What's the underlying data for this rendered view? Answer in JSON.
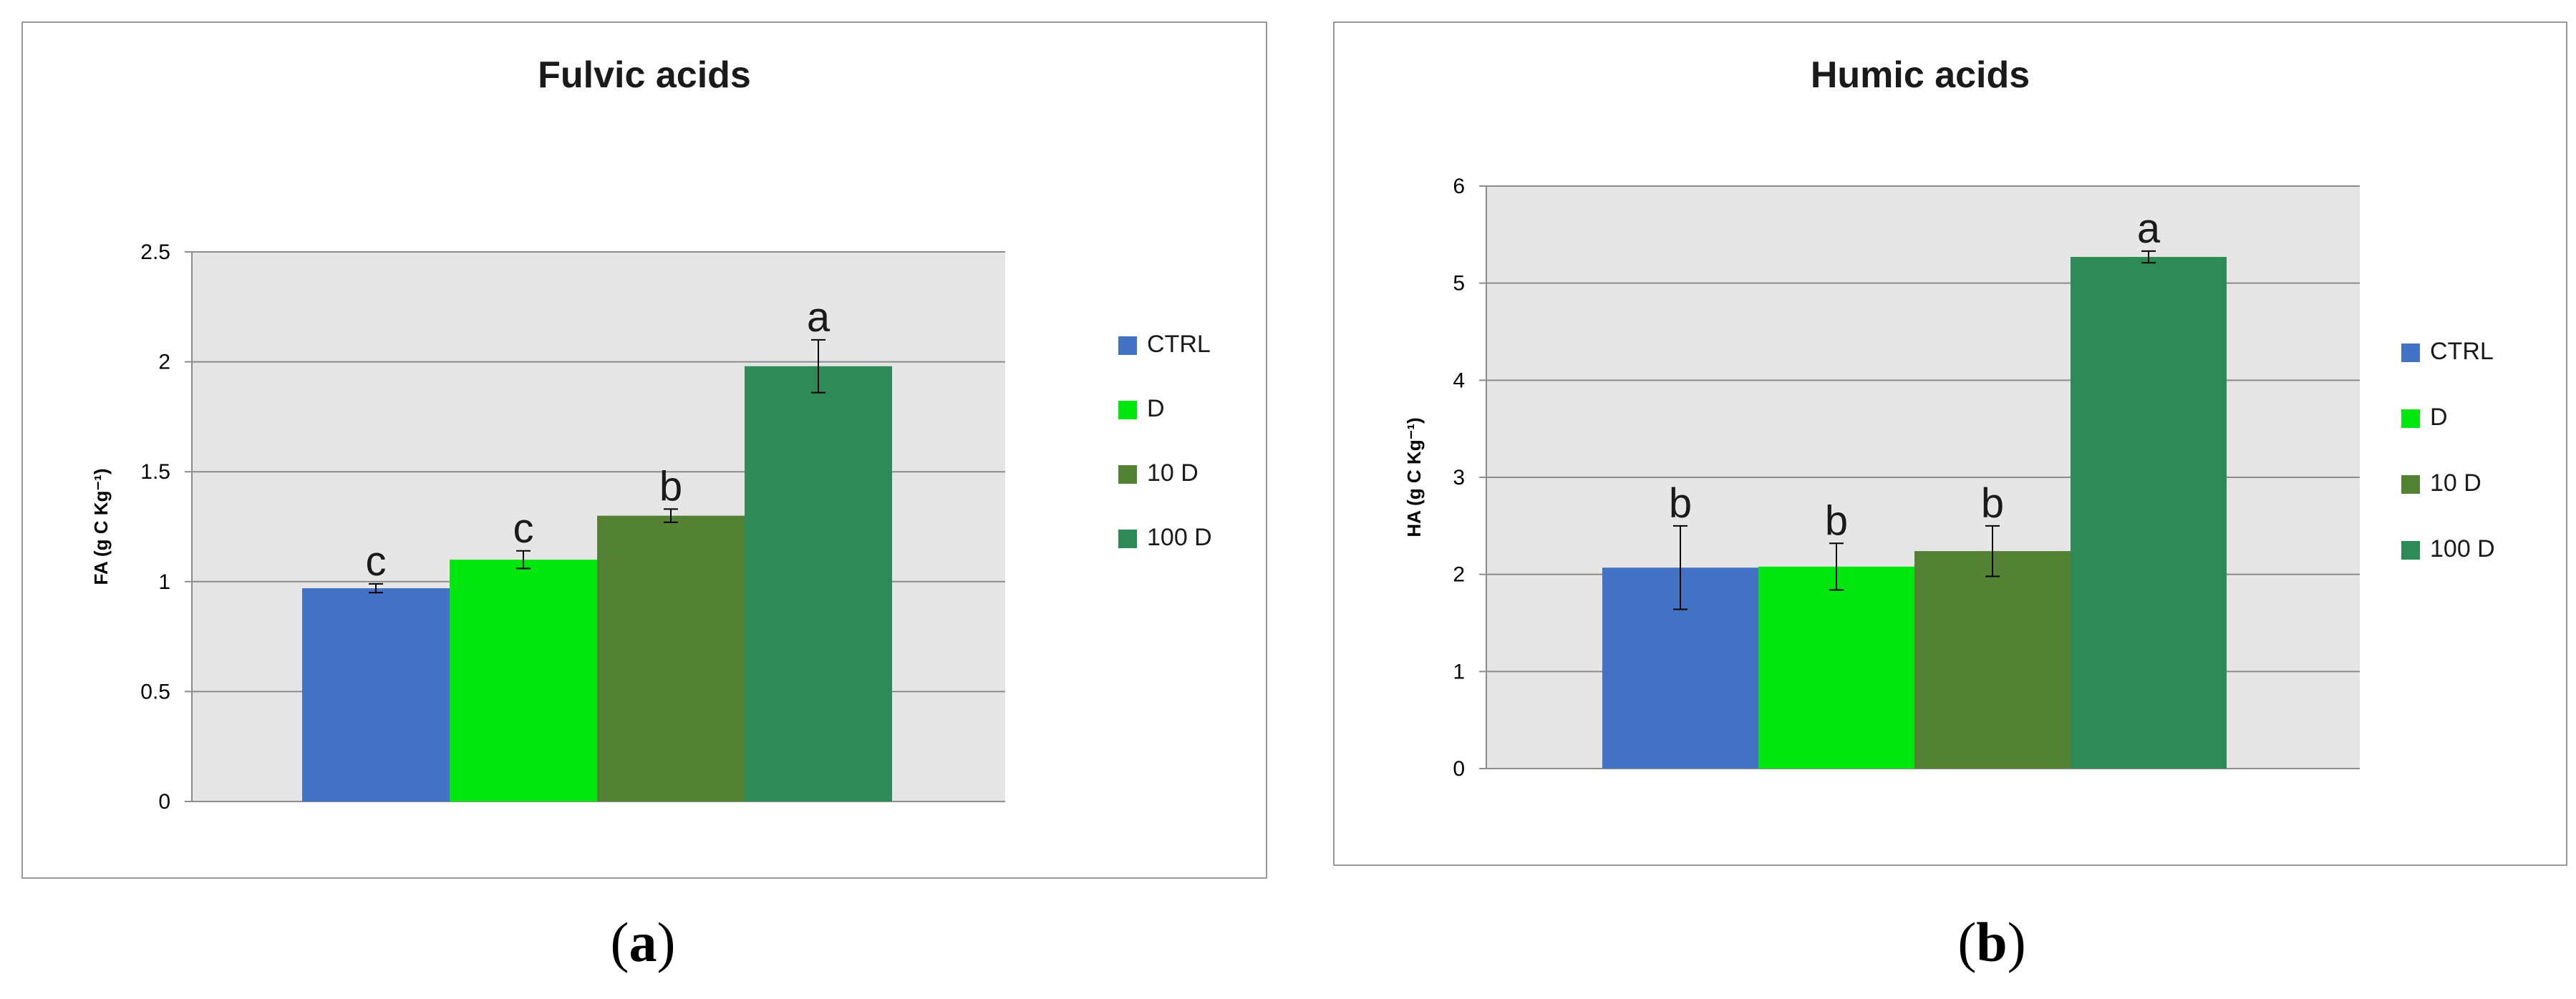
{
  "chart_data": [
    {
      "type": "bar",
      "title": "Fulvic acids",
      "ylabel": "FA (g C Kg⁻¹)",
      "xlabel": "",
      "categories": [
        "CTRL",
        "D",
        "10 D",
        "100 D"
      ],
      "values": [
        0.97,
        1.1,
        1.3,
        1.98
      ],
      "errors": [
        0.02,
        0.04,
        0.03,
        0.12
      ],
      "letters": [
        "c",
        "c",
        "b",
        "a"
      ],
      "colors": [
        "#4472C4",
        "#00E60E",
        "#548235",
        "#2E8B57"
      ],
      "ylim": [
        0,
        2.5
      ],
      "yticks": [
        "0",
        "0.5",
        "1",
        "1.5",
        "2",
        "2.5"
      ],
      "grid": true,
      "legend": "right",
      "caption_letter": "a"
    },
    {
      "type": "bar",
      "title": "Humic acids",
      "ylabel": "HA (g C Kg⁻¹)",
      "xlabel": "",
      "categories": [
        "CTRL",
        "D",
        "10 D",
        "100 D"
      ],
      "values": [
        2.07,
        2.08,
        2.24,
        5.27
      ],
      "errors": [
        0.43,
        0.24,
        0.26,
        0.06
      ],
      "letters": [
        "b",
        "b",
        "b",
        "a"
      ],
      "colors": [
        "#4472C4",
        "#00E60E",
        "#548235",
        "#2E8B57"
      ],
      "ylim": [
        0,
        6
      ],
      "yticks": [
        "0",
        "1",
        "2",
        "3",
        "4",
        "5",
        "6"
      ],
      "grid": true,
      "legend": "right",
      "caption_letter": "b"
    }
  ]
}
